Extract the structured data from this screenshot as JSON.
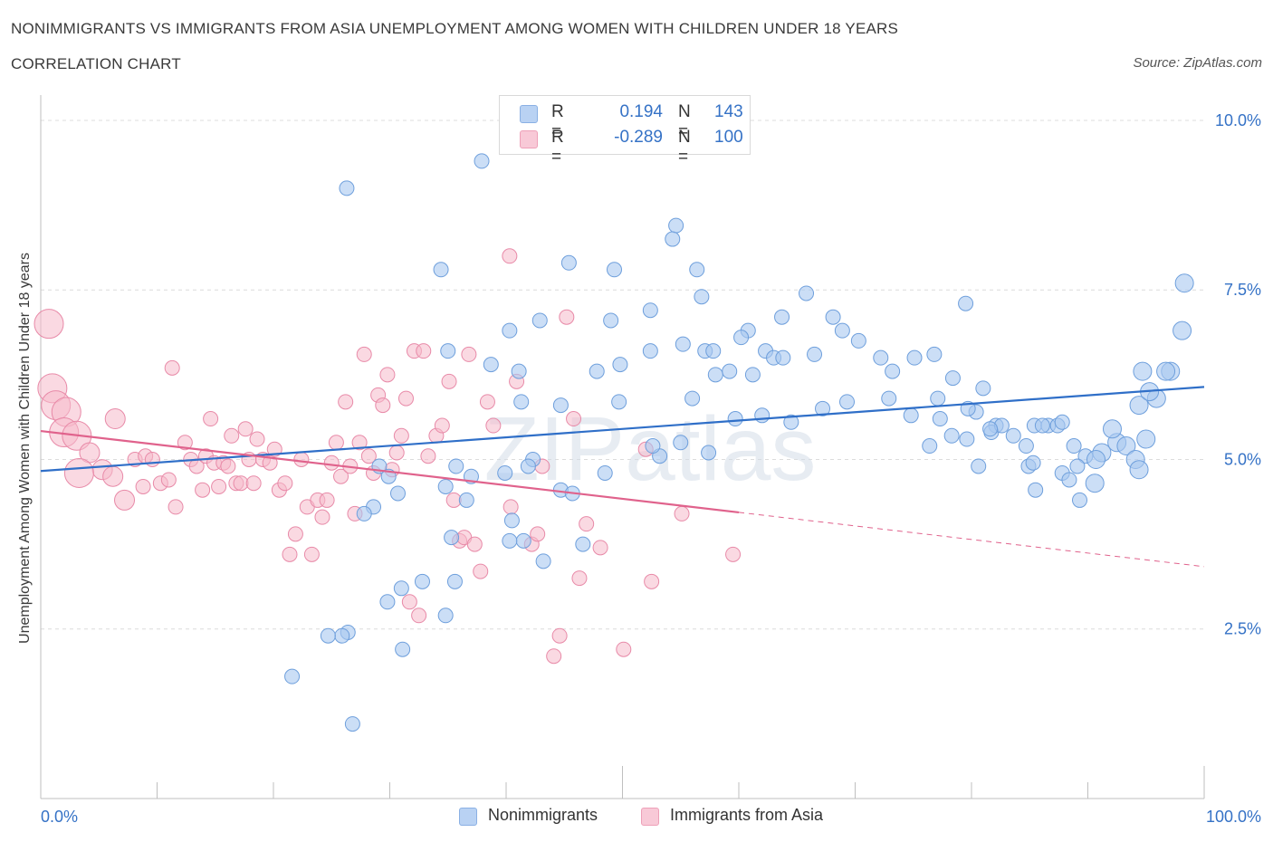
{
  "header": {
    "title": "NONIMMIGRANTS VS IMMIGRANTS FROM ASIA UNEMPLOYMENT AMONG WOMEN WITH CHILDREN UNDER 18 YEARS",
    "subtitle": "CORRELATION CHART",
    "source": "Source: ZipAtlas.com"
  },
  "watermark": "ZIPatlas",
  "colors": {
    "blue_fill": "#a9c8f0",
    "blue_stroke": "#6e9fdc",
    "blue_line": "#2f6fc8",
    "pink_fill": "#f6b9cb",
    "pink_stroke": "#e88aa8",
    "pink_line": "#e0628c",
    "grid": "#dcdcdc",
    "tick_label": "#3572c6"
  },
  "legend_top": {
    "rows": [
      {
        "r_label": "R =",
        "r_value": "0.194",
        "n_label": "N =",
        "n_value": "143"
      },
      {
        "r_label": "R =",
        "r_value": "-0.289",
        "n_label": "N =",
        "n_value": "100"
      }
    ]
  },
  "legend_bottom": {
    "items": [
      {
        "label": "Nonimmigrants"
      },
      {
        "label": "Immigrants from Asia"
      }
    ]
  },
  "chart_data": {
    "type": "scatter",
    "title": "NONIMMIGRANTS VS IMMIGRANTS FROM ASIA UNEMPLOYMENT AMONG WOMEN WITH CHILDREN UNDER 18 YEARS",
    "subtitle": "CORRELATION CHART",
    "xlabel": "",
    "ylabel": "Unemployment Among Women with Children Under 18 years",
    "xlim": [
      0,
      100
    ],
    "ylim": [
      0,
      10.2
    ],
    "x_tick_labels": [
      "0.0%",
      "100.0%"
    ],
    "y_ticks": [
      2.5,
      5.0,
      7.5,
      10.0
    ],
    "y_tick_labels": [
      "2.5%",
      "5.0%",
      "7.5%",
      "10.0%"
    ],
    "grid": true,
    "legend": "bottom-center",
    "series": [
      {
        "name": "Nonimmigrants",
        "r": 0.194,
        "n": 143,
        "trend": {
          "x": [
            0,
            100
          ],
          "y": [
            4.83,
            6.07
          ]
        },
        "points": [
          [
            37.9,
            9.4
          ],
          [
            26.3,
            9.0
          ],
          [
            54.6,
            8.45
          ],
          [
            54.3,
            8.25
          ],
          [
            45.4,
            7.9
          ],
          [
            49.3,
            7.8
          ],
          [
            56.4,
            7.8
          ],
          [
            56.8,
            7.4
          ],
          [
            65.8,
            7.45
          ],
          [
            79.5,
            7.3
          ],
          [
            98.3,
            7.6
          ],
          [
            52.4,
            7.2
          ],
          [
            42.9,
            7.05
          ],
          [
            49.0,
            7.05
          ],
          [
            63.7,
            7.1
          ],
          [
            68.1,
            7.1
          ],
          [
            40.3,
            6.9
          ],
          [
            60.8,
            6.9
          ],
          [
            68.9,
            6.9
          ],
          [
            55.2,
            6.7
          ],
          [
            52.4,
            6.6
          ],
          [
            60.2,
            6.8
          ],
          [
            70.3,
            6.75
          ],
          [
            98.1,
            6.9
          ],
          [
            34.4,
            7.8
          ],
          [
            35.0,
            6.6
          ],
          [
            38.7,
            6.4
          ],
          [
            41.1,
            6.3
          ],
          [
            47.8,
            6.3
          ],
          [
            49.8,
            6.4
          ],
          [
            57.1,
            6.6
          ],
          [
            57.8,
            6.6
          ],
          [
            59.2,
            6.3
          ],
          [
            62.3,
            6.6
          ],
          [
            63.0,
            6.5
          ],
          [
            63.8,
            6.5
          ],
          [
            66.5,
            6.55
          ],
          [
            72.2,
            6.5
          ],
          [
            75.1,
            6.5
          ],
          [
            76.8,
            6.55
          ],
          [
            78.4,
            6.2
          ],
          [
            73.2,
            6.3
          ],
          [
            97.1,
            6.3
          ],
          [
            94.7,
            6.3
          ],
          [
            96.7,
            6.3
          ],
          [
            95.9,
            5.9
          ],
          [
            94.4,
            5.8
          ],
          [
            95.3,
            6.0
          ],
          [
            61.2,
            6.25
          ],
          [
            44.7,
            5.8
          ],
          [
            41.3,
            5.85
          ],
          [
            49.7,
            5.85
          ],
          [
            56.0,
            5.9
          ],
          [
            58.0,
            6.25
          ],
          [
            59.7,
            5.6
          ],
          [
            62.0,
            5.65
          ],
          [
            64.5,
            5.55
          ],
          [
            67.2,
            5.75
          ],
          [
            69.3,
            5.85
          ],
          [
            72.9,
            5.9
          ],
          [
            77.1,
            5.9
          ],
          [
            74.8,
            5.65
          ],
          [
            77.3,
            5.6
          ],
          [
            81.0,
            6.05
          ],
          [
            80.4,
            5.7
          ],
          [
            82.1,
            5.5
          ],
          [
            78.3,
            5.35
          ],
          [
            76.4,
            5.2
          ],
          [
            79.6,
            5.3
          ],
          [
            81.7,
            5.4
          ],
          [
            83.6,
            5.35
          ],
          [
            84.7,
            5.2
          ],
          [
            85.4,
            5.5
          ],
          [
            86.6,
            5.5
          ],
          [
            87.4,
            5.5
          ],
          [
            88.8,
            5.2
          ],
          [
            89.8,
            5.05
          ],
          [
            91.2,
            5.1
          ],
          [
            92.5,
            5.25
          ],
          [
            93.3,
            5.2
          ],
          [
            92.1,
            5.45
          ],
          [
            90.7,
            5.0
          ],
          [
            95.0,
            5.3
          ],
          [
            94.1,
            5.0
          ],
          [
            86.1,
            5.5
          ],
          [
            87.8,
            5.55
          ],
          [
            82.6,
            5.5
          ],
          [
            79.7,
            5.75
          ],
          [
            81.6,
            5.45
          ],
          [
            84.9,
            4.9
          ],
          [
            85.5,
            4.55
          ],
          [
            87.8,
            4.8
          ],
          [
            88.4,
            4.7
          ],
          [
            89.3,
            4.4
          ],
          [
            90.6,
            4.65
          ],
          [
            89.1,
            4.9
          ],
          [
            94.4,
            4.85
          ],
          [
            80.6,
            4.9
          ],
          [
            85.3,
            4.95
          ],
          [
            42.3,
            5.0
          ],
          [
            39.9,
            4.8
          ],
          [
            37.0,
            4.75
          ],
          [
            35.7,
            4.9
          ],
          [
            41.9,
            4.9
          ],
          [
            44.7,
            4.55
          ],
          [
            45.7,
            4.5
          ],
          [
            48.5,
            4.8
          ],
          [
            53.2,
            5.05
          ],
          [
            52.6,
            5.2
          ],
          [
            55.0,
            5.25
          ],
          [
            57.4,
            5.1
          ],
          [
            29.1,
            4.9
          ],
          [
            29.9,
            4.75
          ],
          [
            30.7,
            4.5
          ],
          [
            34.8,
            4.6
          ],
          [
            36.6,
            4.4
          ],
          [
            28.6,
            4.3
          ],
          [
            27.8,
            4.2
          ],
          [
            40.5,
            4.1
          ],
          [
            41.5,
            3.8
          ],
          [
            46.6,
            3.75
          ],
          [
            43.2,
            3.5
          ],
          [
            40.3,
            3.8
          ],
          [
            35.3,
            3.85
          ],
          [
            35.6,
            3.2
          ],
          [
            32.8,
            3.2
          ],
          [
            31.0,
            3.1
          ],
          [
            29.8,
            2.9
          ],
          [
            34.8,
            2.7
          ],
          [
            26.4,
            2.45
          ],
          [
            25.9,
            2.4
          ],
          [
            24.7,
            2.4
          ],
          [
            31.1,
            2.2
          ],
          [
            21.6,
            1.8
          ],
          [
            26.8,
            1.1
          ]
        ]
      },
      {
        "name": "Immigrants from Asia",
        "r": -0.289,
        "n": 100,
        "trend": {
          "x": [
            0,
            60
          ],
          "y": [
            5.42,
            4.22
          ]
        },
        "trend_extension": {
          "x": [
            60,
            100
          ],
          "y": [
            4.22,
            3.42
          ]
        },
        "points": [
          [
            0.7,
            7.0
          ],
          [
            1.0,
            6.05
          ],
          [
            1.3,
            5.8
          ],
          [
            2.2,
            5.7
          ],
          [
            2.0,
            5.4
          ],
          [
            3.1,
            5.35
          ],
          [
            4.2,
            5.1
          ],
          [
            5.3,
            4.85
          ],
          [
            3.3,
            4.8
          ],
          [
            6.4,
            5.6
          ],
          [
            6.2,
            4.75
          ],
          [
            7.2,
            4.4
          ],
          [
            8.1,
            5.0
          ],
          [
            8.8,
            4.6
          ],
          [
            9.0,
            5.05
          ],
          [
            9.6,
            5.0
          ],
          [
            10.3,
            4.65
          ],
          [
            11.0,
            4.7
          ],
          [
            11.3,
            6.35
          ],
          [
            11.6,
            4.3
          ],
          [
            12.4,
            5.25
          ],
          [
            12.9,
            5.0
          ],
          [
            13.4,
            4.9
          ],
          [
            13.9,
            4.55
          ],
          [
            14.2,
            5.05
          ],
          [
            14.6,
            5.6
          ],
          [
            14.9,
            4.95
          ],
          [
            15.3,
            4.6
          ],
          [
            15.7,
            4.95
          ],
          [
            16.1,
            4.9
          ],
          [
            16.4,
            5.35
          ],
          [
            16.8,
            4.65
          ],
          [
            17.2,
            4.65
          ],
          [
            17.6,
            5.45
          ],
          [
            17.9,
            5.0
          ],
          [
            18.3,
            4.65
          ],
          [
            18.6,
            5.3
          ],
          [
            19.1,
            5.0
          ],
          [
            19.7,
            4.95
          ],
          [
            20.1,
            5.15
          ],
          [
            20.5,
            4.55
          ],
          [
            21.0,
            4.65
          ],
          [
            21.4,
            3.6
          ],
          [
            21.9,
            3.9
          ],
          [
            22.4,
            5.0
          ],
          [
            22.9,
            4.3
          ],
          [
            23.3,
            3.6
          ],
          [
            23.8,
            4.4
          ],
          [
            24.2,
            4.15
          ],
          [
            24.6,
            4.4
          ],
          [
            25.0,
            4.95
          ],
          [
            25.4,
            5.25
          ],
          [
            25.8,
            4.75
          ],
          [
            26.2,
            5.85
          ],
          [
            26.6,
            4.9
          ],
          [
            27.0,
            4.2
          ],
          [
            27.4,
            5.25
          ],
          [
            27.8,
            6.55
          ],
          [
            28.2,
            5.05
          ],
          [
            28.6,
            4.8
          ],
          [
            29.0,
            5.95
          ],
          [
            29.4,
            5.8
          ],
          [
            29.8,
            6.25
          ],
          [
            30.2,
            4.85
          ],
          [
            30.6,
            5.1
          ],
          [
            31.0,
            5.35
          ],
          [
            31.4,
            5.9
          ],
          [
            31.7,
            2.9
          ],
          [
            32.1,
            6.6
          ],
          [
            32.5,
            2.7
          ],
          [
            32.9,
            6.6
          ],
          [
            33.3,
            5.05
          ],
          [
            34.0,
            5.35
          ],
          [
            34.5,
            5.5
          ],
          [
            35.1,
            6.15
          ],
          [
            35.5,
            4.4
          ],
          [
            36.0,
            3.8
          ],
          [
            36.4,
            3.85
          ],
          [
            36.8,
            6.55
          ],
          [
            37.3,
            3.75
          ],
          [
            37.8,
            3.35
          ],
          [
            38.4,
            5.85
          ],
          [
            38.9,
            5.5
          ],
          [
            40.4,
            4.3
          ],
          [
            40.9,
            6.15
          ],
          [
            42.2,
            3.75
          ],
          [
            42.7,
            3.9
          ],
          [
            43.1,
            4.9
          ],
          [
            44.1,
            2.1
          ],
          [
            44.6,
            2.4
          ],
          [
            45.2,
            7.1
          ],
          [
            45.8,
            5.6
          ],
          [
            46.3,
            3.25
          ],
          [
            46.9,
            4.05
          ],
          [
            48.1,
            3.7
          ],
          [
            50.1,
            2.2
          ],
          [
            52.0,
            5.15
          ],
          [
            52.5,
            3.2
          ],
          [
            55.1,
            4.2
          ],
          [
            59.5,
            3.6
          ],
          [
            40.3,
            8.0
          ]
        ]
      }
    ]
  }
}
